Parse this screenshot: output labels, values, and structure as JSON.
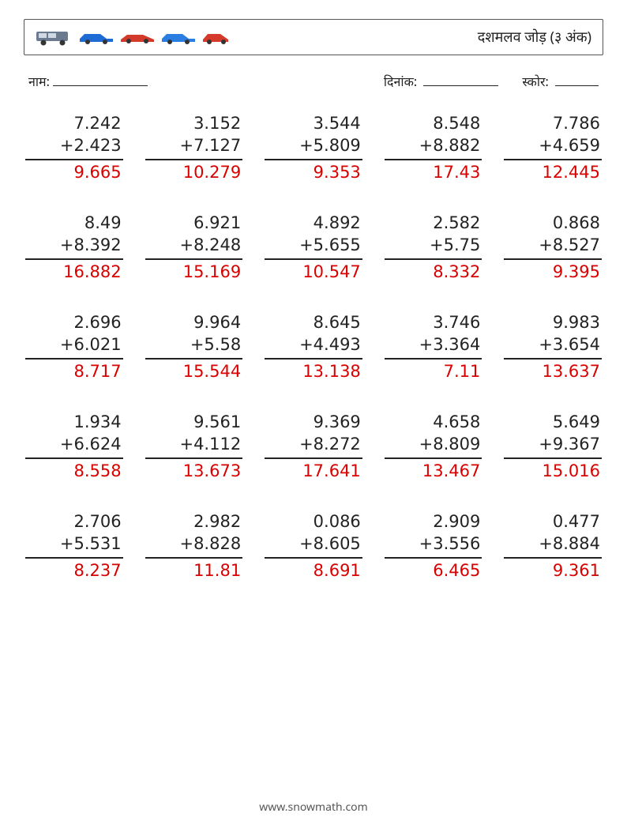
{
  "header": {
    "title": "दशमलव जोड़ (३ अंक)",
    "cars": [
      "van",
      "sedan-blue",
      "sports-red",
      "sedan-blue2",
      "hatch-red"
    ]
  },
  "meta": {
    "name_label": "नाम:",
    "date_label": "दिनांक:",
    "score_label": "स्कोर:"
  },
  "style": {
    "answer_color": "#d90000",
    "text_color": "#222222",
    "font_size_problem": 21,
    "font_size_title": 18,
    "columns": 5,
    "rows": 5
  },
  "problems": [
    [
      {
        "a": "7.242",
        "b": "+2.423",
        "ans": "9.665"
      },
      {
        "a": "3.152",
        "b": "+7.127",
        "ans": "10.279"
      },
      {
        "a": "3.544",
        "b": "+5.809",
        "ans": "9.353"
      },
      {
        "a": "8.548",
        "b": "+8.882",
        "ans": "17.43"
      },
      {
        "a": "7.786",
        "b": "+4.659",
        "ans": "12.445"
      }
    ],
    [
      {
        "a": "8.49",
        "b": "+8.392",
        "ans": "16.882"
      },
      {
        "a": "6.921",
        "b": "+8.248",
        "ans": "15.169"
      },
      {
        "a": "4.892",
        "b": "+5.655",
        "ans": "10.547"
      },
      {
        "a": "2.582",
        "b": "+5.75",
        "ans": "8.332"
      },
      {
        "a": "0.868",
        "b": "+8.527",
        "ans": "9.395"
      }
    ],
    [
      {
        "a": "2.696",
        "b": "+6.021",
        "ans": "8.717"
      },
      {
        "a": "9.964",
        "b": "+5.58",
        "ans": "15.544"
      },
      {
        "a": "8.645",
        "b": "+4.493",
        "ans": "13.138"
      },
      {
        "a": "3.746",
        "b": "+3.364",
        "ans": "7.11"
      },
      {
        "a": "9.983",
        "b": "+3.654",
        "ans": "13.637"
      }
    ],
    [
      {
        "a": "1.934",
        "b": "+6.624",
        "ans": "8.558"
      },
      {
        "a": "9.561",
        "b": "+4.112",
        "ans": "13.673"
      },
      {
        "a": "9.369",
        "b": "+8.272",
        "ans": "17.641"
      },
      {
        "a": "4.658",
        "b": "+8.809",
        "ans": "13.467"
      },
      {
        "a": "5.649",
        "b": "+9.367",
        "ans": "15.016"
      }
    ],
    [
      {
        "a": "2.706",
        "b": "+5.531",
        "ans": "8.237"
      },
      {
        "a": "2.982",
        "b": "+8.828",
        "ans": "11.81"
      },
      {
        "a": "0.086",
        "b": "+8.605",
        "ans": "8.691"
      },
      {
        "a": "2.909",
        "b": "+3.556",
        "ans": "6.465"
      },
      {
        "a": "0.477",
        "b": "+8.884",
        "ans": "9.361"
      }
    ]
  ],
  "footer": "www.snowmath.com"
}
